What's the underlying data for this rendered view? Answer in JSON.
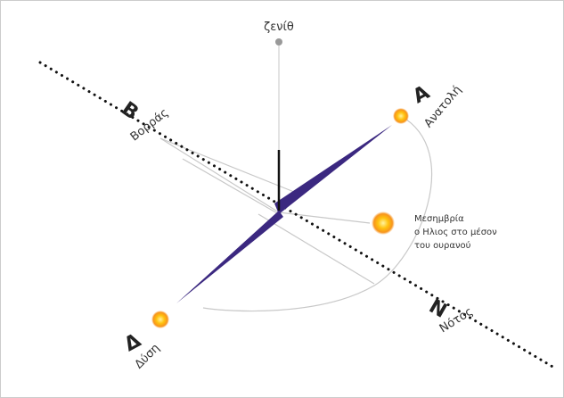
{
  "zenith": "ζενίθ",
  "directions": [
    {
      "letter": "Β",
      "name": "Βορράς"
    },
    {
      "letter": "Α",
      "name": "Ανατολή"
    },
    {
      "letter": "Δ",
      "name": "Δύση"
    },
    {
      "letter": "Ν",
      "name": "Νότος"
    }
  ],
  "noon": [
    "Μεσημβρία",
    "ο Ηλιος στο μέσον",
    "του ουρανού"
  ]
}
